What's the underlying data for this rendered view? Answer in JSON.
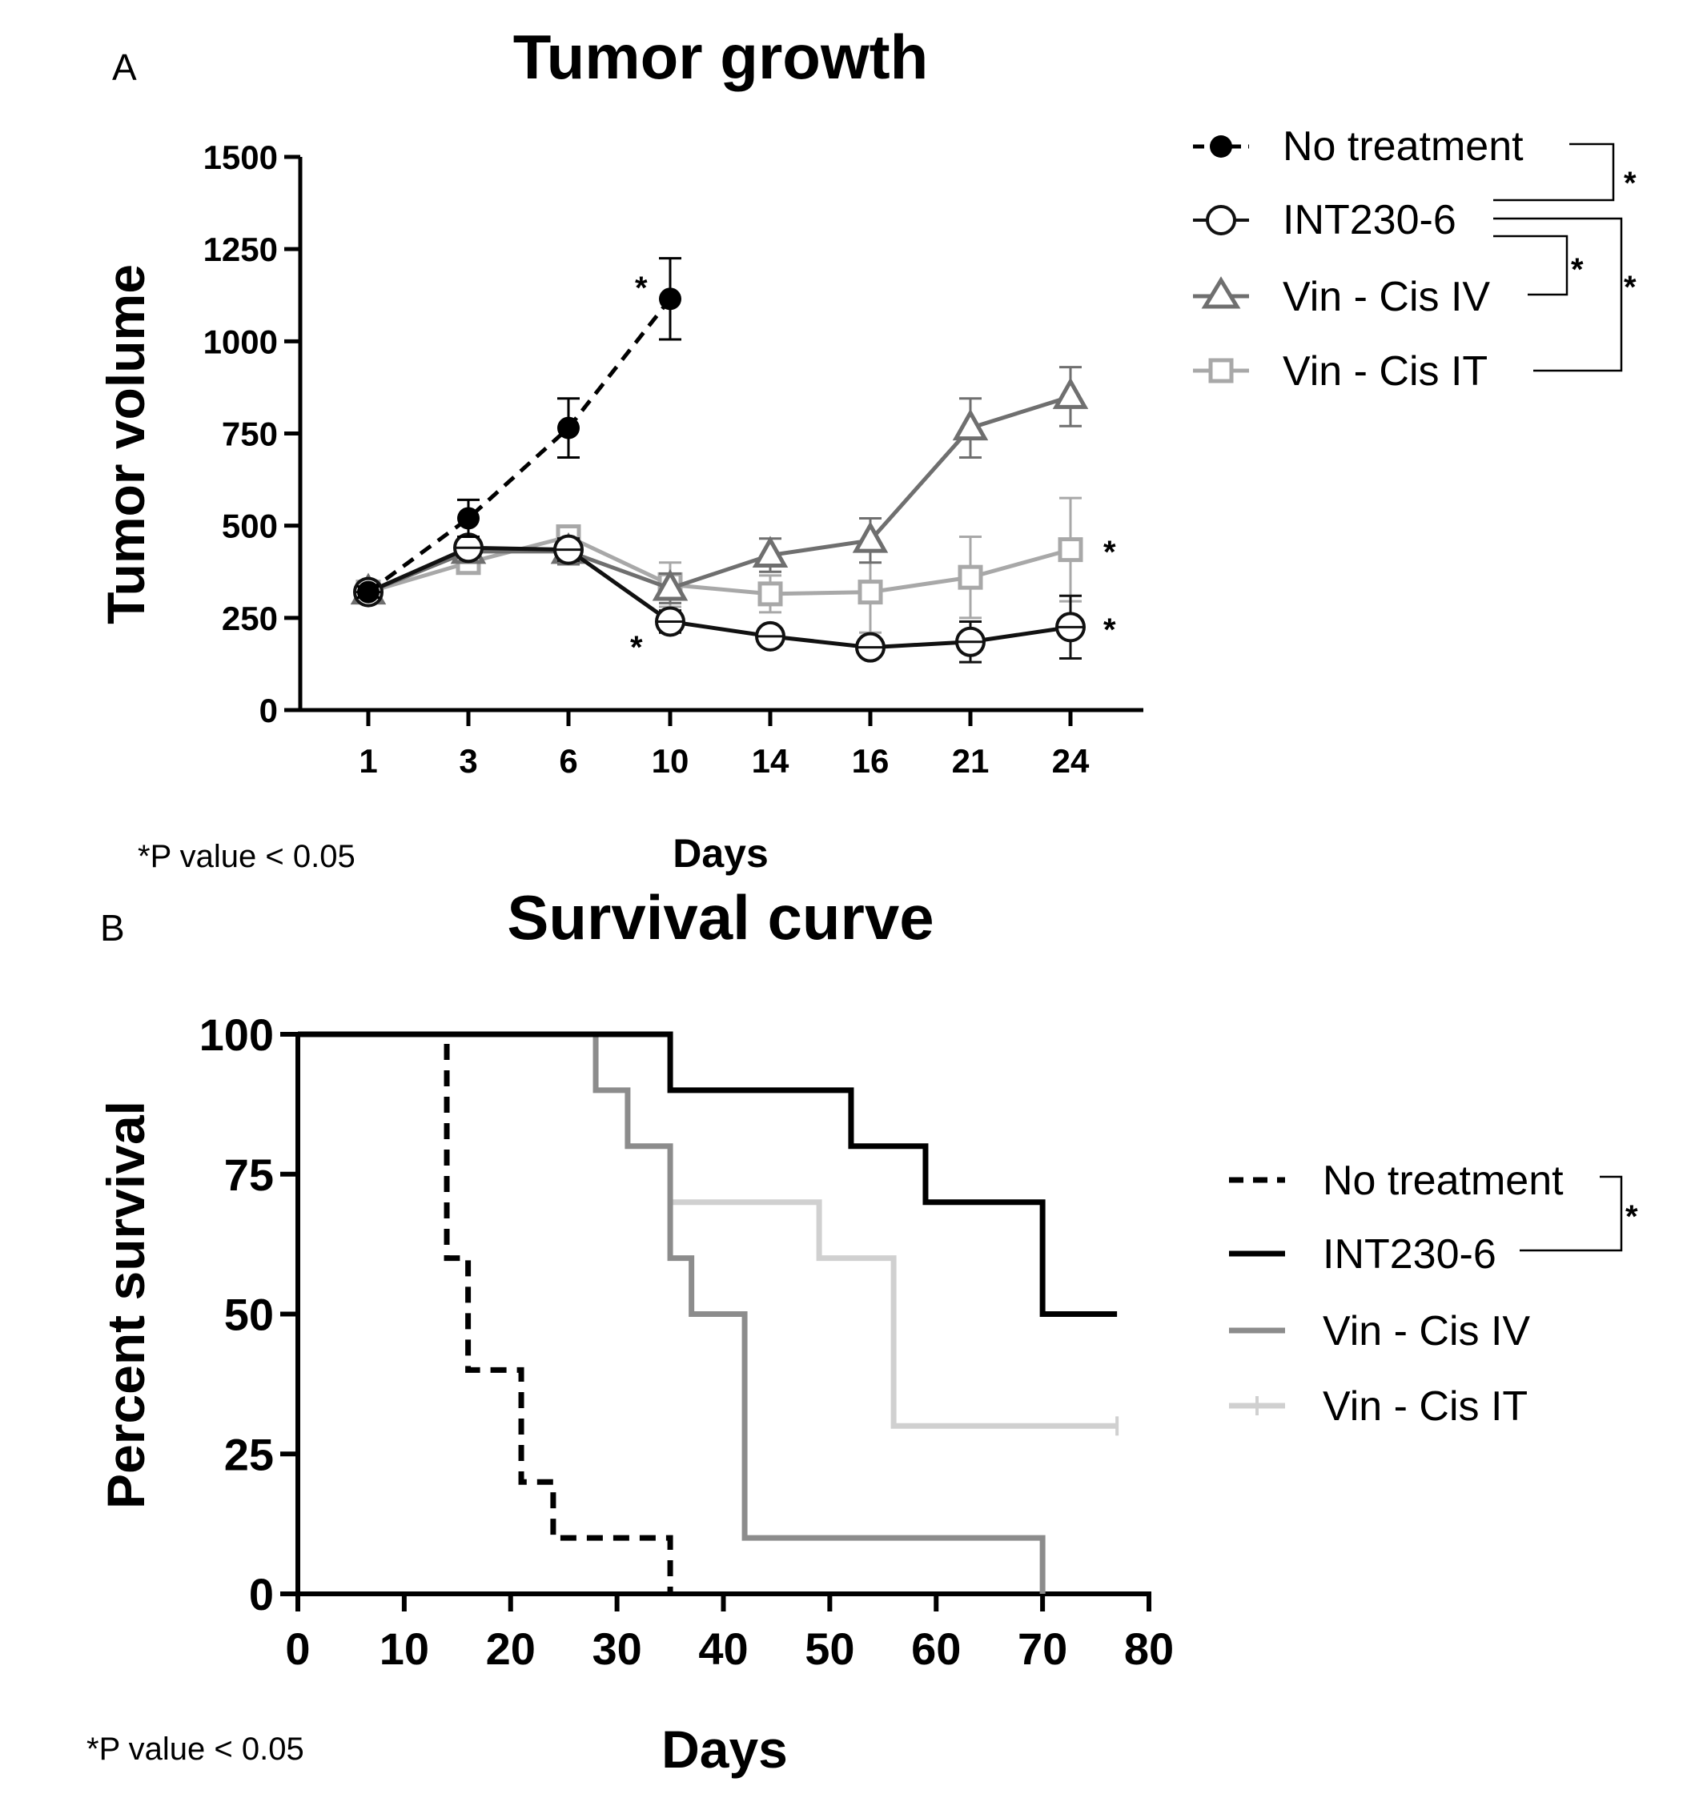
{
  "chart_data": [
    {
      "type": "line",
      "panel": "A",
      "title": "Tumor growth",
      "xlabel": "Days",
      "ylabel": "Tumor volume",
      "x_categories": [
        "1",
        "3",
        "6",
        "10",
        "14",
        "16",
        "21",
        "24"
      ],
      "ylim": [
        0,
        1500
      ],
      "yticks": [
        "0",
        "250",
        "500",
        "750",
        "1000",
        "1250",
        "1500"
      ],
      "footnote": "*P value < 0.05",
      "series": [
        {
          "name": "No treatment",
          "color": "#000000",
          "marker": "filled-circle",
          "dashed": true,
          "values": [
            320,
            520,
            765,
            1115,
            null,
            null,
            null,
            null
          ],
          "errors": [
            15,
            50,
            80,
            110,
            null,
            null,
            null,
            null
          ]
        },
        {
          "name": "INT230-6",
          "color": "#111111",
          "marker": "open-circle",
          "dashed": false,
          "values": [
            320,
            440,
            435,
            240,
            200,
            170,
            185,
            225
          ],
          "errors": [
            15,
            25,
            30,
            30,
            20,
            15,
            55,
            85
          ]
        },
        {
          "name": "Vin - Cis IV",
          "color": "#6f6f6f",
          "marker": "open-triangle",
          "dashed": false,
          "values": [
            320,
            430,
            430,
            330,
            420,
            460,
            765,
            850
          ],
          "errors": [
            15,
            30,
            35,
            40,
            45,
            60,
            80,
            80
          ]
        },
        {
          "name": "Vin - Cis IT",
          "color": "#a8a8a8",
          "marker": "open-square",
          "dashed": false,
          "values": [
            320,
            400,
            470,
            340,
            315,
            320,
            360,
            435
          ],
          "errors": [
            15,
            25,
            30,
            60,
            50,
            110,
            110,
            140
          ]
        }
      ],
      "annotations": [
        "*",
        "*",
        "*",
        "*"
      ],
      "significance_brackets": [
        "*",
        "*",
        "*"
      ]
    },
    {
      "type": "step",
      "panel": "B",
      "title": "Survival curve",
      "xlabel": "Days",
      "ylabel": "Percent survival",
      "xlim": [
        0,
        80
      ],
      "ylim": [
        0,
        100
      ],
      "xticks": [
        "0",
        "10",
        "20",
        "30",
        "40",
        "50",
        "60",
        "70",
        "80"
      ],
      "yticks": [
        "0",
        "25",
        "50",
        "75",
        "100"
      ],
      "footnote": "*P value < 0.05",
      "series": [
        {
          "name": "No treatment",
          "color": "#000000",
          "dashed": true,
          "times": [
            0,
            14,
            16,
            21,
            24,
            35
          ],
          "survival": [
            100,
            60,
            40,
            20,
            10,
            0
          ]
        },
        {
          "name": "INT230-6",
          "color": "#000000",
          "dashed": false,
          "times": [
            0,
            35,
            52,
            59,
            70
          ],
          "survival": [
            100,
            90,
            80,
            70,
            50
          ],
          "end": 77
        },
        {
          "name": "Vin - Cis IV",
          "color": "#8c8c8c",
          "dashed": false,
          "times": [
            0,
            28,
            31,
            35,
            37,
            42,
            70
          ],
          "survival": [
            100,
            90,
            80,
            60,
            50,
            10,
            0
          ]
        },
        {
          "name": "Vin - Cis IT",
          "color": "#d0d0d0",
          "dashed": false,
          "times": [
            35,
            49,
            56
          ],
          "survival": [
            70,
            60,
            30
          ],
          "end": 77
        }
      ],
      "significance_brackets": [
        "*"
      ]
    }
  ]
}
